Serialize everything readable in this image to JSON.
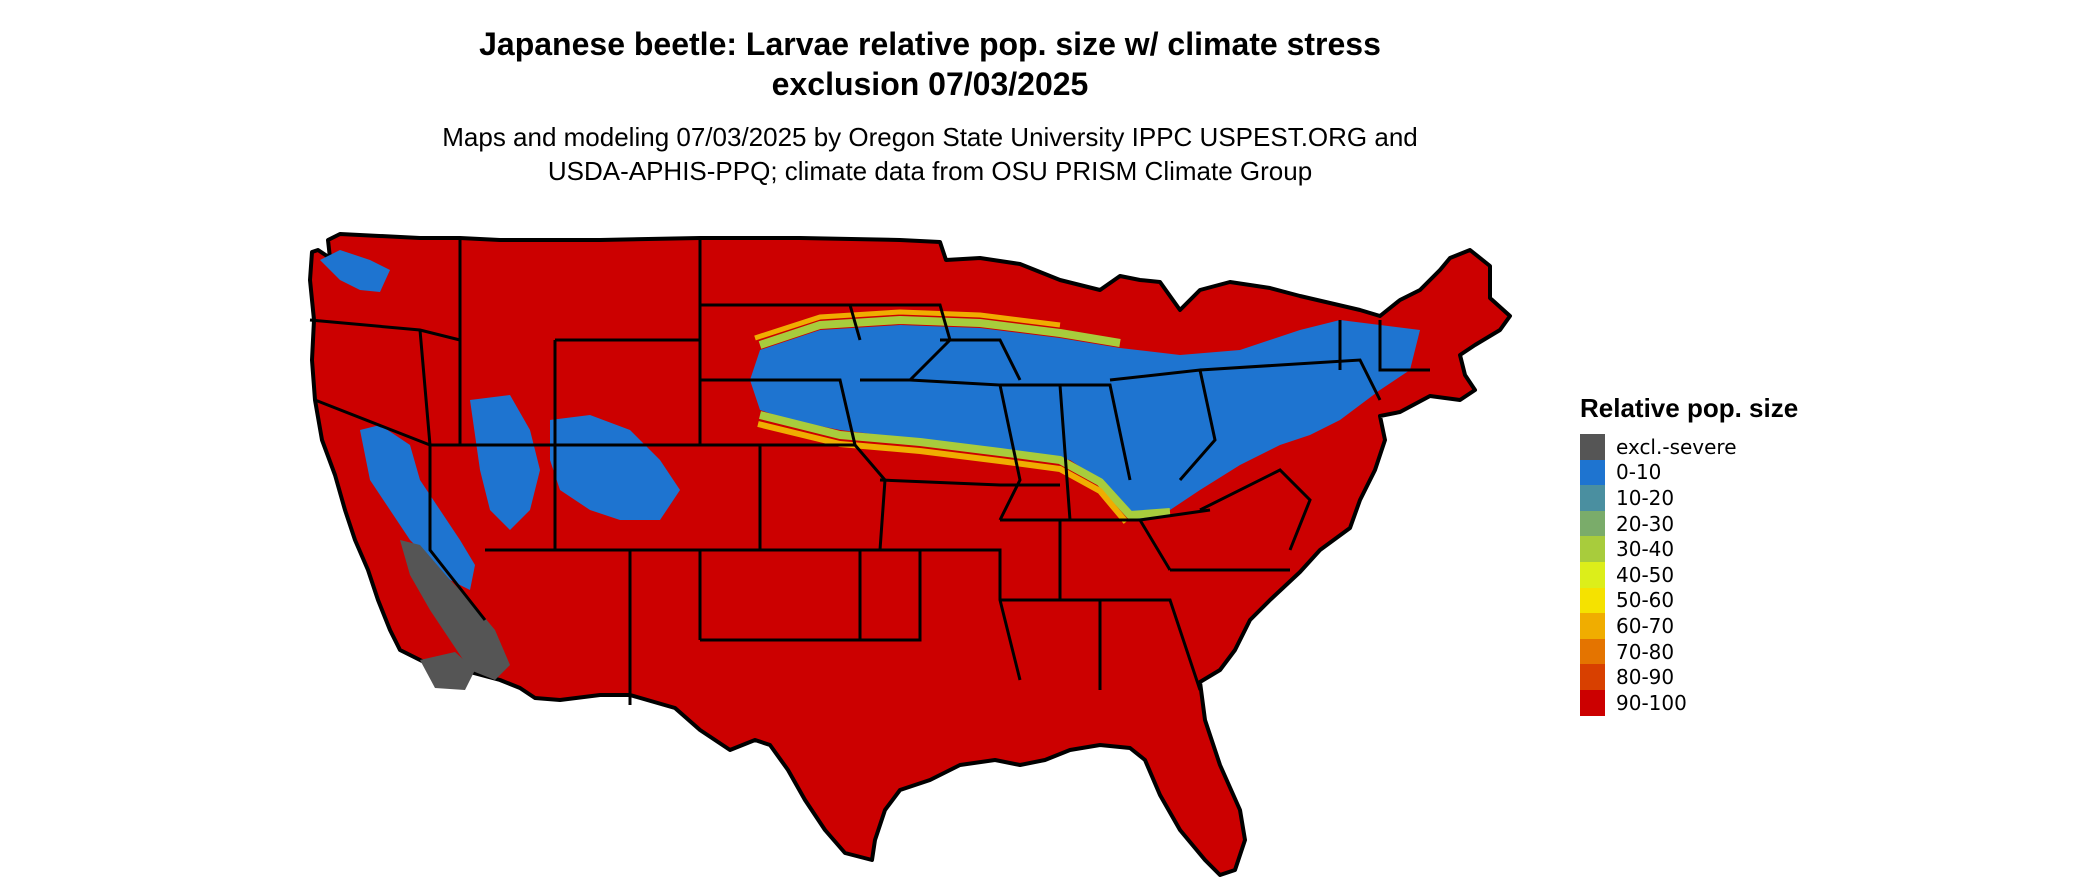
{
  "title_line1": "Japanese beetle: Larvae relative pop. size w/ climate stress",
  "title_line2": "exclusion 07/03/2025",
  "subtitle_line1": "Maps and modeling 07/03/2025 by Oregon State University IPPC USPEST.ORG and",
  "subtitle_line2": "USDA-APHIS-PPQ; climate data from OSU PRISM Climate Group",
  "legend": {
    "title": "Relative pop. size",
    "items": [
      {
        "label": "excl.-severe",
        "color": "#555555"
      },
      {
        "label": "0-10",
        "color": "#1e74d0"
      },
      {
        "label": "10-20",
        "color": "#4a8fa0"
      },
      {
        "label": "20-30",
        "color": "#7aac6a"
      },
      {
        "label": "30-40",
        "color": "#a8cc3c"
      },
      {
        "label": "40-50",
        "color": "#dcee1a"
      },
      {
        "label": "50-60",
        "color": "#f5e200"
      },
      {
        "label": "60-70",
        "color": "#f0ad00"
      },
      {
        "label": "70-80",
        "color": "#e47400"
      },
      {
        "label": "80-90",
        "color": "#d84000"
      },
      {
        "label": "90-100",
        "color": "#cc0000"
      }
    ]
  }
}
